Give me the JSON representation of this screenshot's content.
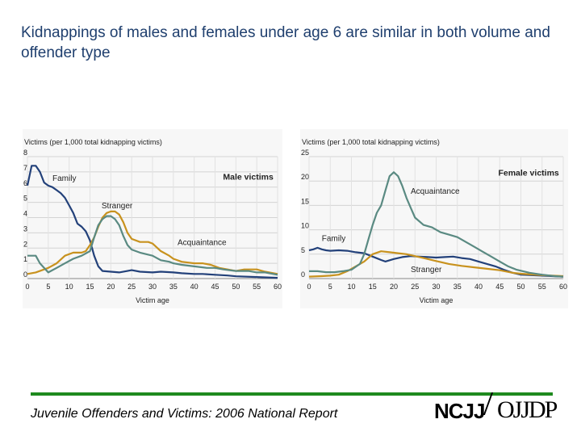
{
  "slide": {
    "title": "Kidnappings of males and females under age 6 are similar in both volume and offender type",
    "footer": "Juvenile Offenders and Victims: 2006 National Report",
    "logo_left": "NCJJ",
    "logo_right": "OJJDP"
  },
  "colors": {
    "family": "#23417a",
    "stranger": "#c8921e",
    "acquaintance": "#5a8a82",
    "footer_rule": "#1e8a1e"
  },
  "chart_data": [
    {
      "id": "male",
      "type": "line",
      "title": "Male victims",
      "ylabel": "Victims (per 1,000 total kidnapping victims)",
      "xlabel": "Victim age",
      "xlim": [
        0,
        60
      ],
      "ylim": [
        0,
        8
      ],
      "xticks": [
        0,
        5,
        10,
        15,
        20,
        25,
        30,
        35,
        40,
        45,
        50,
        55,
        60
      ],
      "yticks": [
        0,
        1,
        2,
        3,
        4,
        5,
        6,
        7,
        8
      ],
      "series": [
        {
          "name": "Family",
          "label": "Family",
          "color_key": "family",
          "points": [
            [
              0,
              6.1
            ],
            [
              1,
              7.4
            ],
            [
              2,
              7.4
            ],
            [
              3,
              7.0
            ],
            [
              4,
              6.3
            ],
            [
              5,
              6.1
            ],
            [
              6,
              6.0
            ],
            [
              7,
              5.8
            ],
            [
              8,
              5.6
            ],
            [
              9,
              5.3
            ],
            [
              10,
              4.8
            ],
            [
              11,
              4.3
            ],
            [
              12,
              3.6
            ],
            [
              13,
              3.4
            ],
            [
              14,
              3.1
            ],
            [
              15,
              2.5
            ],
            [
              16,
              1.5
            ],
            [
              17,
              0.8
            ],
            [
              18,
              0.5
            ],
            [
              20,
              0.45
            ],
            [
              22,
              0.4
            ],
            [
              24,
              0.5
            ],
            [
              25,
              0.55
            ],
            [
              27,
              0.45
            ],
            [
              30,
              0.4
            ],
            [
              32,
              0.45
            ],
            [
              35,
              0.4
            ],
            [
              37,
              0.35
            ],
            [
              40,
              0.3
            ],
            [
              42,
              0.3
            ],
            [
              45,
              0.25
            ],
            [
              48,
              0.2
            ],
            [
              50,
              0.15
            ],
            [
              55,
              0.1
            ],
            [
              60,
              0.05
            ]
          ]
        },
        {
          "name": "Stranger",
          "label": "Stranger",
          "color_key": "stranger",
          "points": [
            [
              0,
              0.3
            ],
            [
              2,
              0.4
            ],
            [
              3,
              0.5
            ],
            [
              5,
              0.7
            ],
            [
              7,
              1.0
            ],
            [
              9,
              1.5
            ],
            [
              11,
              1.7
            ],
            [
              13,
              1.7
            ],
            [
              14,
              1.8
            ],
            [
              15,
              2.2
            ],
            [
              16,
              2.7
            ],
            [
              17,
              3.4
            ],
            [
              18,
              4.0
            ],
            [
              19,
              4.3
            ],
            [
              20,
              4.4
            ],
            [
              21,
              4.4
            ],
            [
              22,
              4.2
            ],
            [
              23,
              3.7
            ],
            [
              24,
              3.0
            ],
            [
              25,
              2.6
            ],
            [
              27,
              2.4
            ],
            [
              29,
              2.4
            ],
            [
              30,
              2.3
            ],
            [
              32,
              1.8
            ],
            [
              34,
              1.5
            ],
            [
              35,
              1.3
            ],
            [
              37,
              1.1
            ],
            [
              40,
              1.0
            ],
            [
              42,
              1.0
            ],
            [
              44,
              0.9
            ],
            [
              46,
              0.7
            ],
            [
              48,
              0.6
            ],
            [
              50,
              0.5
            ],
            [
              52,
              0.6
            ],
            [
              55,
              0.6
            ],
            [
              57,
              0.45
            ],
            [
              60,
              0.3
            ]
          ]
        },
        {
          "name": "Acquaintance",
          "label": "Acquaintance",
          "color_key": "acquaintance",
          "points": [
            [
              0,
              1.5
            ],
            [
              2,
              1.5
            ],
            [
              3,
              1.0
            ],
            [
              5,
              0.4
            ],
            [
              7,
              0.7
            ],
            [
              9,
              1.0
            ],
            [
              11,
              1.3
            ],
            [
              13,
              1.5
            ],
            [
              15,
              1.8
            ],
            [
              16,
              2.7
            ],
            [
              17,
              3.5
            ],
            [
              18,
              3.9
            ],
            [
              19,
              4.1
            ],
            [
              20,
              4.1
            ],
            [
              21,
              3.9
            ],
            [
              22,
              3.5
            ],
            [
              23,
              2.8
            ],
            [
              24,
              2.2
            ],
            [
              25,
              1.9
            ],
            [
              27,
              1.7
            ],
            [
              30,
              1.5
            ],
            [
              32,
              1.2
            ],
            [
              34,
              1.1
            ],
            [
              35,
              1.0
            ],
            [
              37,
              0.9
            ],
            [
              40,
              0.8
            ],
            [
              43,
              0.7
            ],
            [
              45,
              0.7
            ],
            [
              47,
              0.6
            ],
            [
              50,
              0.5
            ],
            [
              53,
              0.5
            ],
            [
              55,
              0.4
            ],
            [
              57,
              0.4
            ],
            [
              60,
              0.25
            ]
          ]
        }
      ]
    },
    {
      "id": "female",
      "type": "line",
      "title": "Female victims",
      "ylabel": "Victims (per 1,000 total kidnapping victims)",
      "xlabel": "Victim age",
      "xlim": [
        0,
        60
      ],
      "ylim": [
        0,
        25
      ],
      "xticks": [
        0,
        5,
        10,
        15,
        20,
        25,
        30,
        35,
        40,
        45,
        50,
        55,
        60
      ],
      "yticks": [
        0,
        5,
        10,
        15,
        20,
        25
      ],
      "series": [
        {
          "name": "Family",
          "label": "Family",
          "color_key": "family",
          "points": [
            [
              0,
              5.8
            ],
            [
              1,
              6.0
            ],
            [
              2,
              6.3
            ],
            [
              3,
              6.0
            ],
            [
              4,
              5.8
            ],
            [
              5,
              5.7
            ],
            [
              7,
              5.8
            ],
            [
              9,
              5.7
            ],
            [
              11,
              5.4
            ],
            [
              13,
              5.2
            ],
            [
              15,
              4.5
            ],
            [
              17,
              3.8
            ],
            [
              18,
              3.5
            ],
            [
              20,
              4.0
            ],
            [
              22,
              4.4
            ],
            [
              24,
              4.6
            ],
            [
              26,
              4.5
            ],
            [
              28,
              4.4
            ],
            [
              30,
              4.3
            ],
            [
              32,
              4.4
            ],
            [
              34,
              4.5
            ],
            [
              36,
              4.2
            ],
            [
              38,
              4.0
            ],
            [
              40,
              3.5
            ],
            [
              42,
              3.0
            ],
            [
              44,
              2.5
            ],
            [
              46,
              1.8
            ],
            [
              48,
              1.2
            ],
            [
              50,
              0.8
            ],
            [
              55,
              0.6
            ],
            [
              60,
              0.4
            ]
          ]
        },
        {
          "name": "Stranger",
          "label": "Stranger",
          "color_key": "stranger",
          "points": [
            [
              0,
              0.4
            ],
            [
              3,
              0.5
            ],
            [
              5,
              0.6
            ],
            [
              7,
              0.8
            ],
            [
              9,
              1.5
            ],
            [
              11,
              2.5
            ],
            [
              13,
              3.5
            ],
            [
              15,
              5.0
            ],
            [
              17,
              5.6
            ],
            [
              19,
              5.4
            ],
            [
              21,
              5.2
            ],
            [
              23,
              5.0
            ],
            [
              25,
              4.6
            ],
            [
              27,
              4.2
            ],
            [
              30,
              3.6
            ],
            [
              33,
              3.0
            ],
            [
              36,
              2.6
            ],
            [
              39,
              2.3
            ],
            [
              42,
              2.0
            ],
            [
              45,
              1.7
            ],
            [
              48,
              1.2
            ],
            [
              50,
              1.0
            ],
            [
              55,
              0.7
            ],
            [
              60,
              0.5
            ]
          ]
        },
        {
          "name": "Acquaintance",
          "label": "Acquaintance",
          "color_key": "acquaintance",
          "points": [
            [
              0,
              1.5
            ],
            [
              2,
              1.5
            ],
            [
              4,
              1.3
            ],
            [
              6,
              1.3
            ],
            [
              8,
              1.5
            ],
            [
              10,
              1.8
            ],
            [
              12,
              3.0
            ],
            [
              13,
              5.0
            ],
            [
              14,
              8.0
            ],
            [
              15,
              11.0
            ],
            [
              16,
              13.5
            ],
            [
              17,
              15.0
            ],
            [
              18,
              18.0
            ],
            [
              19,
              21.0
            ],
            [
              20,
              21.8
            ],
            [
              21,
              21.0
            ],
            [
              22,
              19.0
            ],
            [
              23,
              16.5
            ],
            [
              24,
              14.5
            ],
            [
              25,
              12.5
            ],
            [
              27,
              11.0
            ],
            [
              29,
              10.5
            ],
            [
              31,
              9.5
            ],
            [
              33,
              9.0
            ],
            [
              35,
              8.5
            ],
            [
              37,
              7.5
            ],
            [
              39,
              6.5
            ],
            [
              41,
              5.5
            ],
            [
              43,
              4.5
            ],
            [
              45,
              3.5
            ],
            [
              47,
              2.5
            ],
            [
              49,
              1.8
            ],
            [
              52,
              1.2
            ],
            [
              55,
              0.8
            ],
            [
              58,
              0.5
            ],
            [
              60,
              0.4
            ]
          ]
        }
      ]
    }
  ],
  "annotations": {
    "male": [
      {
        "series": "Family",
        "text": "Family",
        "x": 6,
        "y": 6.4,
        "anchor": "start"
      },
      {
        "series": "Stranger",
        "text": "Stranger",
        "x": 21.5,
        "y": 4.6,
        "anchor": "middle"
      },
      {
        "series": "Acquaintance",
        "text": "Acquaintance",
        "x": 36,
        "y": 2.2,
        "anchor": "start"
      },
      {
        "series": "title",
        "text": "Male victims",
        "x": 59,
        "y": 6.5,
        "anchor": "end"
      }
    ],
    "female": [
      {
        "series": "Family",
        "text": "Family",
        "x": 3,
        "y": 7.7,
        "anchor": "start"
      },
      {
        "series": "Stranger",
        "text": "Stranger",
        "x": 24,
        "y": 1.3,
        "anchor": "start"
      },
      {
        "series": "Acquaintance",
        "text": "Acquaintance",
        "x": 24,
        "y": 17.4,
        "anchor": "start"
      },
      {
        "series": "title",
        "text": "Female victims",
        "x": 59,
        "y": 21.1,
        "anchor": "end"
      }
    ]
  }
}
